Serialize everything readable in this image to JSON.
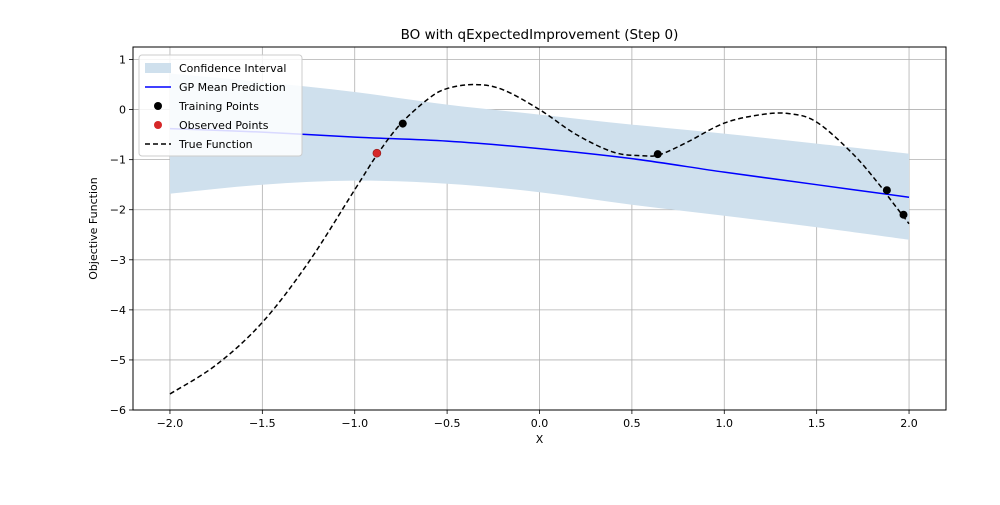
{
  "chart_data": {
    "type": "line",
    "title": "BO with qExpectedImprovement (Step 0)",
    "xlabel": "X",
    "ylabel": "Objective Function",
    "xlim": [
      -2.2,
      2.2
    ],
    "ylim": [
      -6,
      1.25
    ],
    "xticks": [
      -2.0,
      -1.5,
      -1.0,
      -0.5,
      0.0,
      0.5,
      1.0,
      1.5,
      2.0
    ],
    "xtick_labels": [
      "−2.0",
      "−1.5",
      "−1.0",
      "−0.5",
      "0.0",
      "0.5",
      "1.0",
      "1.5",
      "2.0"
    ],
    "yticks": [
      1,
      0,
      -1,
      -2,
      -3,
      -4,
      -5,
      -6
    ],
    "ytick_labels": [
      "1",
      "0",
      "−1",
      "−2",
      "−3",
      "−4",
      "−5",
      "−6"
    ],
    "grid": true,
    "legend_position": "top-left",
    "legend": [
      {
        "label": "Confidence Interval",
        "kind": "patch",
        "color": "#cfe0ed"
      },
      {
        "label": "GP Mean Prediction",
        "kind": "line",
        "color": "#0000ff"
      },
      {
        "label": "Training Points",
        "kind": "marker",
        "color": "#000000"
      },
      {
        "label": "Observed Points",
        "kind": "marker",
        "color": "#d62728"
      },
      {
        "label": "True Function",
        "kind": "dashed",
        "color": "#000000"
      }
    ],
    "confidence_interval": {
      "name": "Confidence Interval",
      "color": "#cfe0ed",
      "x": [
        -2.0,
        -1.5,
        -1.0,
        -0.5,
        0.0,
        0.5,
        1.0,
        1.5,
        2.0
      ],
      "upper": [
        0.72,
        0.55,
        0.35,
        0.1,
        -0.1,
        -0.3,
        -0.48,
        -0.68,
        -0.88
      ],
      "lower": [
        -1.68,
        -1.5,
        -1.42,
        -1.48,
        -1.65,
        -1.9,
        -2.12,
        -2.35,
        -2.6
      ]
    },
    "gp_mean": {
      "name": "GP Mean Prediction",
      "color": "#0000ff",
      "x": [
        -2.0,
        -1.5,
        -1.0,
        -0.5,
        0.0,
        0.5,
        1.0,
        1.5,
        2.0
      ],
      "y": [
        -0.38,
        -0.45,
        -0.55,
        -0.63,
        -0.78,
        -0.98,
        -1.25,
        -1.5,
        -1.75
      ]
    },
    "true_function": {
      "name": "True Function",
      "color": "#000000",
      "x": [
        -2.0,
        -1.75,
        -1.5,
        -1.25,
        -1.0,
        -0.875,
        -0.75,
        -0.6,
        -0.5,
        -0.35,
        -0.2,
        0.0,
        0.2,
        0.4,
        0.55,
        0.65,
        0.8,
        1.0,
        1.2,
        1.35,
        1.5,
        1.7,
        1.85,
        1.9,
        2.0
      ],
      "y": [
        -5.68,
        -5.1,
        -4.25,
        -3.05,
        -1.6,
        -0.88,
        -0.28,
        0.22,
        0.42,
        0.5,
        0.4,
        0.0,
        -0.5,
        -0.85,
        -0.92,
        -0.9,
        -0.65,
        -0.27,
        -0.1,
        -0.08,
        -0.25,
        -0.9,
        -1.55,
        -1.8,
        -2.28
      ]
    },
    "training_points": {
      "name": "Training Points",
      "color": "#000000",
      "x": [
        -0.74,
        0.64,
        1.88,
        1.97
      ],
      "y": [
        -0.28,
        -0.89,
        -1.61,
        -2.1
      ]
    },
    "observed_points": {
      "name": "Observed Points",
      "color": "#d62728",
      "x": [
        -0.88
      ],
      "y": [
        -0.87
      ]
    }
  }
}
